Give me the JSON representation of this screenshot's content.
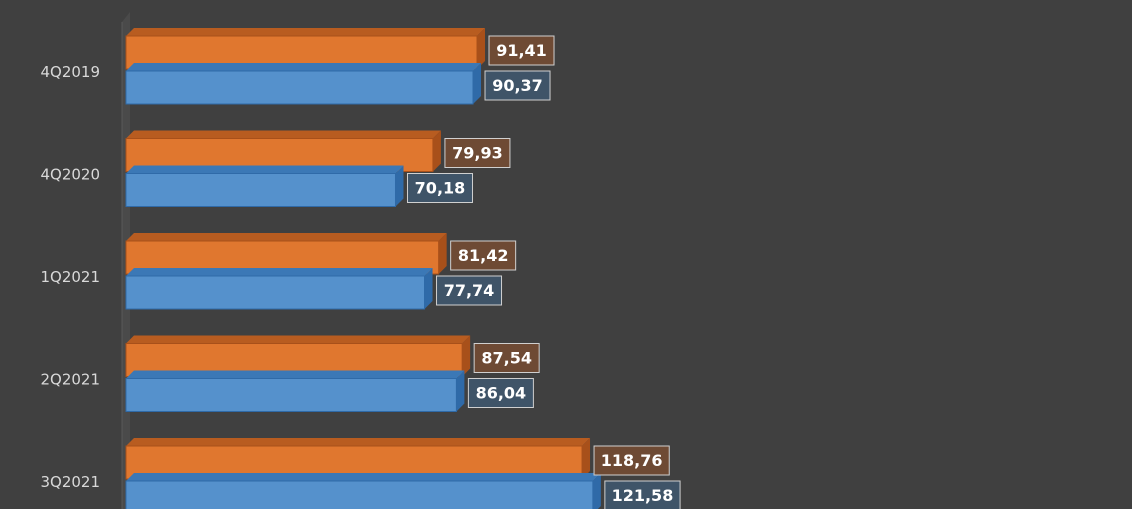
{
  "chart_data": {
    "type": "bar",
    "orientation": "horizontal",
    "bar_style": "3d",
    "categories": [
      "4Q2019",
      "4Q2020",
      "1Q2021",
      "2Q2021",
      "3Q2021"
    ],
    "series": [
      {
        "values": [
          91.41,
          79.93,
          81.42,
          87.54,
          118.76
        ],
        "labels": [
          "91,41",
          "79,93",
          "81,42",
          "87,54",
          "118,76"
        ],
        "color": "#e0772f",
        "side_color": "#a8501a",
        "top_color": "#b85c20",
        "label_bg": "#6e4a34"
      },
      {
        "values": [
          90.37,
          70.18,
          77.74,
          86.04,
          121.58
        ],
        "labels": [
          "90,37",
          "70,18",
          "77,74",
          "86,04",
          "121,58"
        ],
        "color": "#5591cc",
        "side_color": "#2f6aa8",
        "top_color": "#3b78b6",
        "label_bg": "#3f5468"
      }
    ],
    "xlim": [
      0,
      121.58
    ],
    "background": "#404040",
    "label_color": "#d9d9d9",
    "grid": false,
    "legend": "none"
  }
}
